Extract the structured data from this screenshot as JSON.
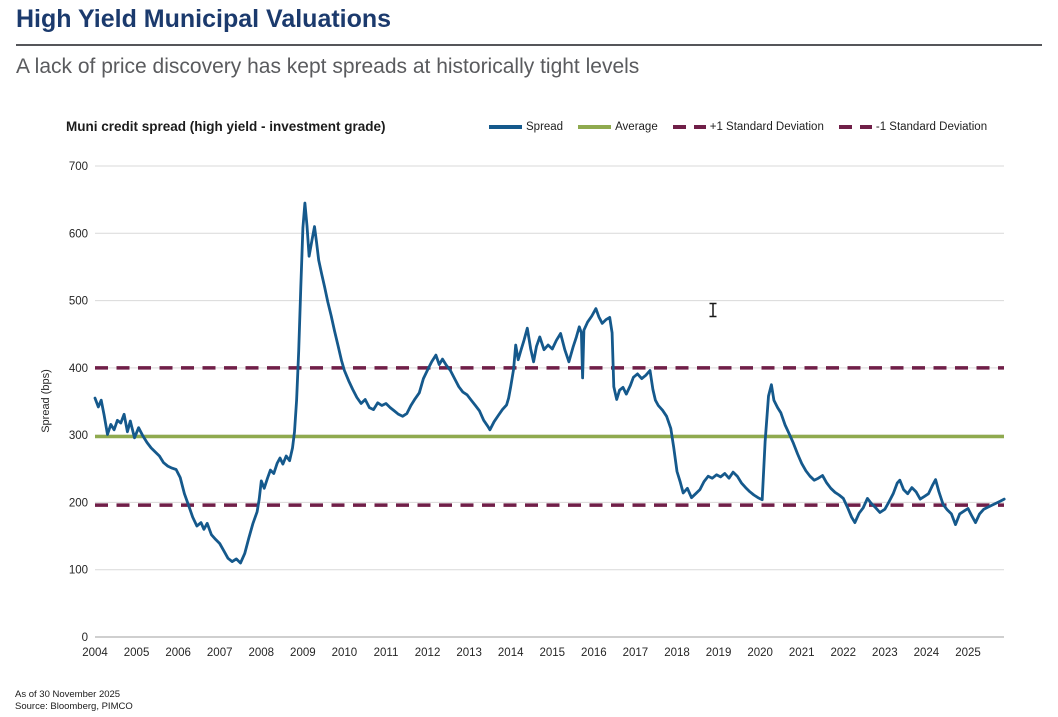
{
  "page": {
    "title": "High Yield Municipal Valuations",
    "subtitle": "A lack of price discovery has kept spreads at historically tight levels"
  },
  "chart": {
    "title": "Muni credit spread (high yield - investment grade)",
    "y_axis_title": "Spread (bps)",
    "legend": [
      {
        "label": "Spread",
        "style": "solid",
        "color": "#15598c"
      },
      {
        "label": "Average",
        "style": "solid",
        "color": "#8faa4f"
      },
      {
        "label": "+1 Standard Deviation",
        "style": "dashed",
        "color": "#701f48"
      },
      {
        "label": "-1 Standard Deviation",
        "style": "dashed",
        "color": "#701f48"
      }
    ]
  },
  "footer": {
    "as_of": "As of 30 November 2025",
    "source": "Source: Bloomberg, PIMCO"
  },
  "colors": {
    "title": "#1b3a6d",
    "subtitle": "#5a5b5e",
    "gridline": "#d9d9d9",
    "axis_line": "#9f9f9f",
    "tick_text": "#262626"
  },
  "chart_data": {
    "type": "line",
    "title": "Muni credit spread (high yield - investment grade)",
    "xlabel": "",
    "ylabel": "Spread (bps)",
    "ylim": [
      0,
      700
    ],
    "y_ticks": [
      0,
      100,
      200,
      300,
      400,
      500,
      600,
      700
    ],
    "x_ticks": [
      2004,
      2005,
      2006,
      2007,
      2008,
      2009,
      2010,
      2011,
      2012,
      2013,
      2014,
      2015,
      2016,
      2017,
      2018,
      2019,
      2020,
      2021,
      2022,
      2023,
      2024,
      2025
    ],
    "x_range": [
      2004,
      2025.9
    ],
    "grid": "horizontal",
    "legend_position": "top",
    "reference_lines": [
      {
        "name": "Average",
        "value": 298,
        "color": "#8faa4f",
        "style": "solid"
      },
      {
        "name": "+1 Standard Deviation",
        "value": 400,
        "color": "#701f48",
        "style": "dashed"
      },
      {
        "name": "-1 Standard Deviation",
        "value": 196,
        "color": "#701f48",
        "style": "dashed"
      }
    ],
    "series": [
      {
        "name": "Spread",
        "color": "#15598c",
        "points": [
          [
            2004.0,
            355
          ],
          [
            2004.08,
            342
          ],
          [
            2004.15,
            352
          ],
          [
            2004.22,
            330
          ],
          [
            2004.3,
            301
          ],
          [
            2004.38,
            316
          ],
          [
            2004.46,
            308
          ],
          [
            2004.54,
            322
          ],
          [
            2004.62,
            318
          ],
          [
            2004.7,
            331
          ],
          [
            2004.78,
            305
          ],
          [
            2004.85,
            321
          ],
          [
            2004.95,
            296
          ],
          [
            2005.05,
            311
          ],
          [
            2005.15,
            299
          ],
          [
            2005.25,
            289
          ],
          [
            2005.35,
            281
          ],
          [
            2005.45,
            275
          ],
          [
            2005.55,
            269
          ],
          [
            2005.65,
            259
          ],
          [
            2005.75,
            254
          ],
          [
            2005.85,
            251
          ],
          [
            2005.95,
            249
          ],
          [
            2006.05,
            237
          ],
          [
            2006.15,
            213
          ],
          [
            2006.25,
            196
          ],
          [
            2006.35,
            178
          ],
          [
            2006.45,
            165
          ],
          [
            2006.55,
            170
          ],
          [
            2006.62,
            160
          ],
          [
            2006.7,
            169
          ],
          [
            2006.8,
            152
          ],
          [
            2006.9,
            145
          ],
          [
            2007.0,
            139
          ],
          [
            2007.1,
            128
          ],
          [
            2007.2,
            117
          ],
          [
            2007.3,
            112
          ],
          [
            2007.4,
            116
          ],
          [
            2007.5,
            110
          ],
          [
            2007.6,
            124
          ],
          [
            2007.7,
            147
          ],
          [
            2007.8,
            169
          ],
          [
            2007.9,
            186
          ],
          [
            2007.95,
            205
          ],
          [
            2008.0,
            232
          ],
          [
            2008.07,
            221
          ],
          [
            2008.15,
            236
          ],
          [
            2008.22,
            248
          ],
          [
            2008.3,
            243
          ],
          [
            2008.38,
            258
          ],
          [
            2008.45,
            266
          ],
          [
            2008.52,
            257
          ],
          [
            2008.6,
            269
          ],
          [
            2008.68,
            262
          ],
          [
            2008.75,
            281
          ],
          [
            2008.8,
            305
          ],
          [
            2008.85,
            352
          ],
          [
            2008.9,
            425
          ],
          [
            2008.95,
            520
          ],
          [
            2009.0,
            608
          ],
          [
            2009.05,
            645
          ],
          [
            2009.1,
            611
          ],
          [
            2009.15,
            566
          ],
          [
            2009.22,
            590
          ],
          [
            2009.28,
            610
          ],
          [
            2009.33,
            586
          ],
          [
            2009.38,
            560
          ],
          [
            2009.45,
            540
          ],
          [
            2009.52,
            521
          ],
          [
            2009.6,
            498
          ],
          [
            2009.68,
            478
          ],
          [
            2009.76,
            455
          ],
          [
            2009.85,
            432
          ],
          [
            2009.93,
            411
          ],
          [
            2010.0,
            396
          ],
          [
            2010.1,
            381
          ],
          [
            2010.2,
            368
          ],
          [
            2010.3,
            356
          ],
          [
            2010.4,
            347
          ],
          [
            2010.5,
            353
          ],
          [
            2010.6,
            341
          ],
          [
            2010.7,
            338
          ],
          [
            2010.8,
            348
          ],
          [
            2010.9,
            344
          ],
          [
            2011.0,
            347
          ],
          [
            2011.1,
            341
          ],
          [
            2011.2,
            336
          ],
          [
            2011.3,
            331
          ],
          [
            2011.4,
            328
          ],
          [
            2011.5,
            332
          ],
          [
            2011.6,
            344
          ],
          [
            2011.7,
            354
          ],
          [
            2011.8,
            363
          ],
          [
            2011.9,
            384
          ],
          [
            2012.0,
            397
          ],
          [
            2012.1,
            409
          ],
          [
            2012.2,
            419
          ],
          [
            2012.28,
            405
          ],
          [
            2012.36,
            413
          ],
          [
            2012.45,
            404
          ],
          [
            2012.55,
            396
          ],
          [
            2012.65,
            384
          ],
          [
            2012.75,
            372
          ],
          [
            2012.85,
            364
          ],
          [
            2012.95,
            360
          ],
          [
            2013.05,
            352
          ],
          [
            2013.15,
            344
          ],
          [
            2013.25,
            336
          ],
          [
            2013.35,
            322
          ],
          [
            2013.45,
            313
          ],
          [
            2013.5,
            308
          ],
          [
            2013.6,
            320
          ],
          [
            2013.7,
            329
          ],
          [
            2013.8,
            338
          ],
          [
            2013.9,
            345
          ],
          [
            2013.95,
            355
          ],
          [
            2014.0,
            372
          ],
          [
            2014.07,
            398
          ],
          [
            2014.12,
            434
          ],
          [
            2014.18,
            412
          ],
          [
            2014.25,
            427
          ],
          [
            2014.32,
            441
          ],
          [
            2014.4,
            459
          ],
          [
            2014.48,
            428
          ],
          [
            2014.55,
            409
          ],
          [
            2014.62,
            432
          ],
          [
            2014.7,
            446
          ],
          [
            2014.8,
            427
          ],
          [
            2014.9,
            434
          ],
          [
            2015.0,
            428
          ],
          [
            2015.1,
            441
          ],
          [
            2015.2,
            451
          ],
          [
            2015.3,
            427
          ],
          [
            2015.4,
            409
          ],
          [
            2015.5,
            431
          ],
          [
            2015.58,
            446
          ],
          [
            2015.65,
            461
          ],
          [
            2015.7,
            452
          ],
          [
            2015.73,
            385
          ],
          [
            2015.76,
            456
          ],
          [
            2015.85,
            468
          ],
          [
            2015.95,
            477
          ],
          [
            2016.05,
            488
          ],
          [
            2016.12,
            476
          ],
          [
            2016.2,
            466
          ],
          [
            2016.3,
            472
          ],
          [
            2016.38,
            475
          ],
          [
            2016.44,
            452
          ],
          [
            2016.48,
            372
          ],
          [
            2016.55,
            353
          ],
          [
            2016.62,
            367
          ],
          [
            2016.7,
            371
          ],
          [
            2016.78,
            361
          ],
          [
            2016.88,
            374
          ],
          [
            2016.95,
            386
          ],
          [
            2017.05,
            391
          ],
          [
            2017.15,
            384
          ],
          [
            2017.25,
            389
          ],
          [
            2017.35,
            396
          ],
          [
            2017.42,
            368
          ],
          [
            2017.48,
            352
          ],
          [
            2017.55,
            344
          ],
          [
            2017.65,
            337
          ],
          [
            2017.75,
            328
          ],
          [
            2017.85,
            310
          ],
          [
            2017.92,
            282
          ],
          [
            2018.0,
            246
          ],
          [
            2018.08,
            230
          ],
          [
            2018.15,
            214
          ],
          [
            2018.25,
            221
          ],
          [
            2018.35,
            207
          ],
          [
            2018.45,
            213
          ],
          [
            2018.55,
            219
          ],
          [
            2018.65,
            231
          ],
          [
            2018.75,
            239
          ],
          [
            2018.85,
            236
          ],
          [
            2018.95,
            241
          ],
          [
            2019.05,
            238
          ],
          [
            2019.15,
            243
          ],
          [
            2019.25,
            236
          ],
          [
            2019.35,
            245
          ],
          [
            2019.45,
            239
          ],
          [
            2019.55,
            229
          ],
          [
            2019.65,
            222
          ],
          [
            2019.75,
            216
          ],
          [
            2019.85,
            211
          ],
          [
            2019.95,
            207
          ],
          [
            2020.05,
            204
          ],
          [
            2020.12,
            290
          ],
          [
            2020.2,
            358
          ],
          [
            2020.27,
            375
          ],
          [
            2020.33,
            352
          ],
          [
            2020.42,
            341
          ],
          [
            2020.5,
            333
          ],
          [
            2020.6,
            315
          ],
          [
            2020.7,
            302
          ],
          [
            2020.8,
            288
          ],
          [
            2020.9,
            272
          ],
          [
            2021.0,
            258
          ],
          [
            2021.1,
            247
          ],
          [
            2021.2,
            239
          ],
          [
            2021.3,
            233
          ],
          [
            2021.4,
            236
          ],
          [
            2021.5,
            240
          ],
          [
            2021.6,
            229
          ],
          [
            2021.7,
            221
          ],
          [
            2021.8,
            215
          ],
          [
            2021.9,
            211
          ],
          [
            2022.0,
            206
          ],
          [
            2022.1,
            193
          ],
          [
            2022.2,
            178
          ],
          [
            2022.28,
            170
          ],
          [
            2022.38,
            184
          ],
          [
            2022.48,
            192
          ],
          [
            2022.58,
            206
          ],
          [
            2022.68,
            198
          ],
          [
            2022.78,
            192
          ],
          [
            2022.88,
            185
          ],
          [
            2023.0,
            190
          ],
          [
            2023.1,
            201
          ],
          [
            2023.2,
            213
          ],
          [
            2023.3,
            229
          ],
          [
            2023.36,
            233
          ],
          [
            2023.45,
            219
          ],
          [
            2023.55,
            213
          ],
          [
            2023.65,
            222
          ],
          [
            2023.75,
            216
          ],
          [
            2023.85,
            205
          ],
          [
            2023.95,
            209
          ],
          [
            2024.05,
            213
          ],
          [
            2024.15,
            226
          ],
          [
            2024.22,
            234
          ],
          [
            2024.3,
            216
          ],
          [
            2024.4,
            197
          ],
          [
            2024.5,
            189
          ],
          [
            2024.6,
            183
          ],
          [
            2024.7,
            167
          ],
          [
            2024.8,
            183
          ],
          [
            2024.9,
            187
          ],
          [
            2025.0,
            191
          ],
          [
            2025.1,
            179
          ],
          [
            2025.18,
            170
          ],
          [
            2025.28,
            183
          ],
          [
            2025.38,
            190
          ],
          [
            2025.48,
            193
          ],
          [
            2025.58,
            196
          ],
          [
            2025.68,
            199
          ],
          [
            2025.78,
            202
          ],
          [
            2025.87,
            205
          ]
        ]
      }
    ]
  }
}
